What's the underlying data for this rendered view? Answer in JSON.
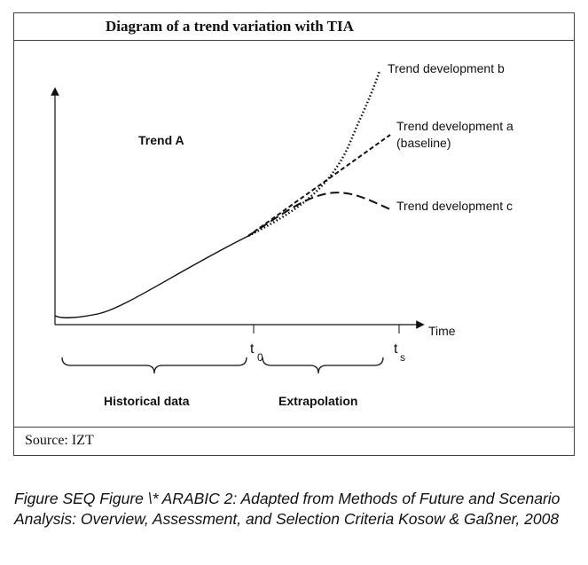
{
  "title": "Diagram of a trend variation with TIA",
  "source": "Source:   IZT",
  "labels": {
    "trend": "Trend A",
    "dev_b": "Trend development b",
    "dev_a_line1": "Trend development a",
    "dev_a_line2": "(baseline)",
    "dev_c": "Trend development c",
    "axis_x": "Time",
    "t0_main": "t",
    "t0_sub": "0",
    "ts_main": "t",
    "ts_sub": "s",
    "historical": "Historical data",
    "extrapolation": "Extrapolation"
  },
  "caption": "Figure  SEQ Figure \\* ARABIC 2: Adapted from Methods of Future and Scenario Analysis: Overview, Assessment, and Selection Criteria Kosow & Gaßner, 2008"
}
